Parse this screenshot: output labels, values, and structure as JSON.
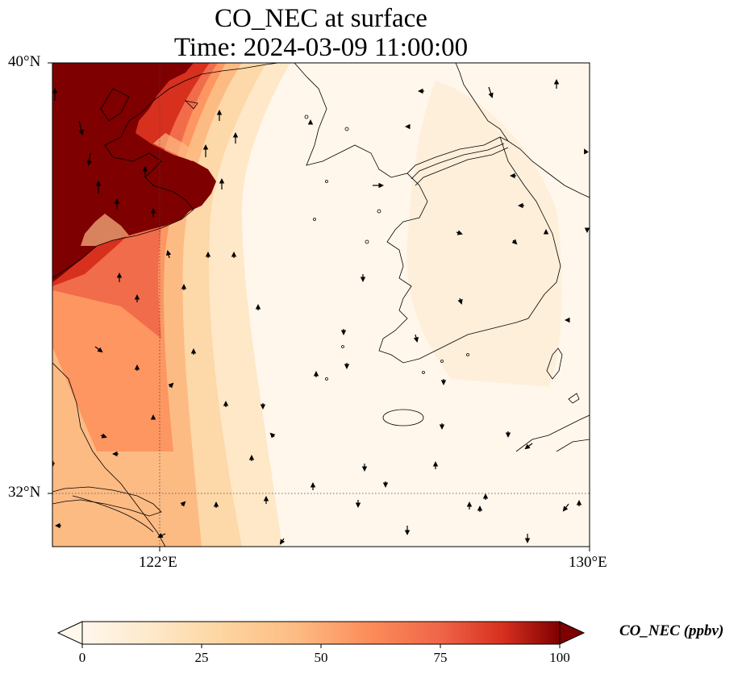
{
  "title": "CO_NEC at surface",
  "subtitle": "Time: 2024-03-09 11:00:00",
  "lat_labels": {
    "north": "40°N",
    "south": "32°N"
  },
  "lon_labels": {
    "west": "122°E",
    "east": "130°E"
  },
  "colorbar": {
    "label": "CO_NEC (ppbv)",
    "ticks": [
      "0",
      "25",
      "50",
      "75",
      "100"
    ],
    "colormap": "OrRd",
    "min": 0,
    "max": 100,
    "extend": "both"
  },
  "map": {
    "extent": {
      "lon_min": 120,
      "lon_max": 130,
      "lat_min": 31,
      "lat_max": 40
    },
    "gridlines": {
      "lons": [
        122
      ],
      "lats": [
        32
      ],
      "style": "dotted"
    },
    "overlay": "wind vectors (arrows)",
    "colors": {
      "high": "#7f0000",
      "mid": "#ef6548",
      "low": "#fdd49e",
      "background": "#fff7ec"
    }
  }
}
